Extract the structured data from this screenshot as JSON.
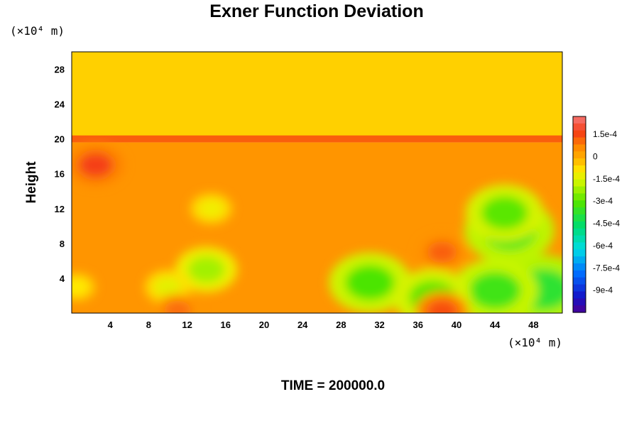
{
  "chart_data": {
    "type": "heatmap",
    "title": "Exner Function Deviation",
    "ylabel": "Height",
    "xlabel": "",
    "x_units": "(×10⁴ m)",
    "y_units": "(×10⁴ m)",
    "x_ticks": [
      4,
      8,
      12,
      16,
      20,
      24,
      28,
      32,
      36,
      40,
      44,
      48
    ],
    "y_ticks": [
      4,
      8,
      12,
      16,
      20,
      24,
      28
    ],
    "xlim": [
      0,
      51
    ],
    "ylim": [
      0,
      30
    ],
    "colorbar": {
      "ticks": [
        "1.5e-4",
        "0",
        "-1.5e-4",
        "-3e-4",
        "-4.5e-4",
        "-6e-4",
        "-7.5e-4",
        "-9e-4"
      ],
      "tick_values": [
        0.00015,
        0,
        -0.00015,
        -0.0003,
        -0.00045,
        -0.0006,
        -0.00075,
        -0.0009
      ],
      "range": [
        -0.00105,
        0.00027
      ]
    },
    "background_value": -2e-05,
    "bands": [
      {
        "y_range": [
          20,
          30
        ],
        "value": -6e-05
      },
      {
        "y_range": [
          19.6,
          20.4
        ],
        "value": 0.00012
      },
      {
        "y_range": [
          0,
          19.6
        ],
        "value": 4e-05
      }
    ],
    "features": [
      {
        "x": 31,
        "y": 3.5,
        "value": -0.00032
      },
      {
        "x": 49,
        "y": 2.7,
        "value": -0.00038
      },
      {
        "x": 45.5,
        "y": 9.5,
        "value": -0.00036
      },
      {
        "x": 45,
        "y": 11.5,
        "value": -0.0003
      },
      {
        "x": 44,
        "y": 2.6,
        "value": -0.00034
      },
      {
        "x": 37.5,
        "y": 1.8,
        "value": -0.0003
      },
      {
        "x": 14,
        "y": 5,
        "value": -0.00022
      },
      {
        "x": 10,
        "y": 3,
        "value": -0.00014
      },
      {
        "x": 0.5,
        "y": 3,
        "value": -0.0001
      },
      {
        "x": 14.5,
        "y": 12,
        "value": -0.00012
      },
      {
        "x": 2.5,
        "y": 17,
        "value": 0.00016
      },
      {
        "x": 38.5,
        "y": 7,
        "value": 0.00012
      },
      {
        "x": 38.5,
        "y": 0.2,
        "value": 0.00014
      },
      {
        "x": 11,
        "y": 0.3,
        "value": 0.0001
      }
    ],
    "time_label": "TIME = 200000.0"
  }
}
